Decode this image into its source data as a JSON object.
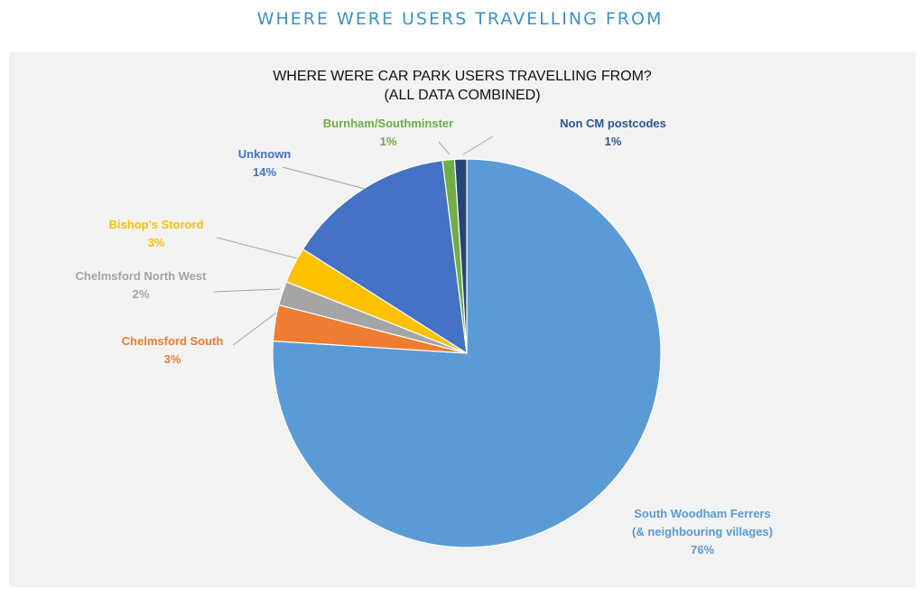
{
  "header": {
    "title": "WHERE WERE USERS TRAVELLING FROM"
  },
  "chart_data": {
    "type": "pie",
    "title": "WHERE WERE CAR PARK USERS TRAVELLING FROM?",
    "subtitle": "(ALL DATA COMBINED)",
    "start_angle_deg": 0,
    "direction": "clockwise",
    "slices": [
      {
        "label": "South Woodham Ferrers (& neighbouring villages)",
        "label_lines": [
          "South Woodham Ferrers",
          "(& neighbouring villages)"
        ],
        "value": 76,
        "value_label": "76%",
        "color": "#5b9bd5",
        "label_color": "#5b9bd5"
      },
      {
        "label": "Chelmsford South",
        "label_lines": [
          "Chelmsford South"
        ],
        "value": 3,
        "value_label": "3%",
        "color": "#ed7d31",
        "label_color": "#ed7d31"
      },
      {
        "label": "Chelmsford North West",
        "label_lines": [
          "Chelmsford North West"
        ],
        "value": 2,
        "value_label": "2%",
        "color": "#a5a5a5",
        "label_color": "#a5a5a5"
      },
      {
        "label": "Bishop's Storord",
        "label_lines": [
          "Bishop's Storord"
        ],
        "value": 3,
        "value_label": "3%",
        "color": "#ffc000",
        "label_color": "#ffc000"
      },
      {
        "label": "Unknown",
        "label_lines": [
          "Unknown"
        ],
        "value": 14,
        "value_label": "14%",
        "color": "#4472c4",
        "label_color": "#4472c4"
      },
      {
        "label": "Burnham/Southminster",
        "label_lines": [
          "Burnham/Southminster"
        ],
        "value": 1,
        "value_label": "1%",
        "color": "#70ad47",
        "label_color": "#70ad47"
      },
      {
        "label": "Non CM postcodes",
        "label_lines": [
          "Non CM postcodes"
        ],
        "value": 1,
        "value_label": "1%",
        "color": "#264478",
        "label_color": "#2e5597"
      }
    ]
  }
}
